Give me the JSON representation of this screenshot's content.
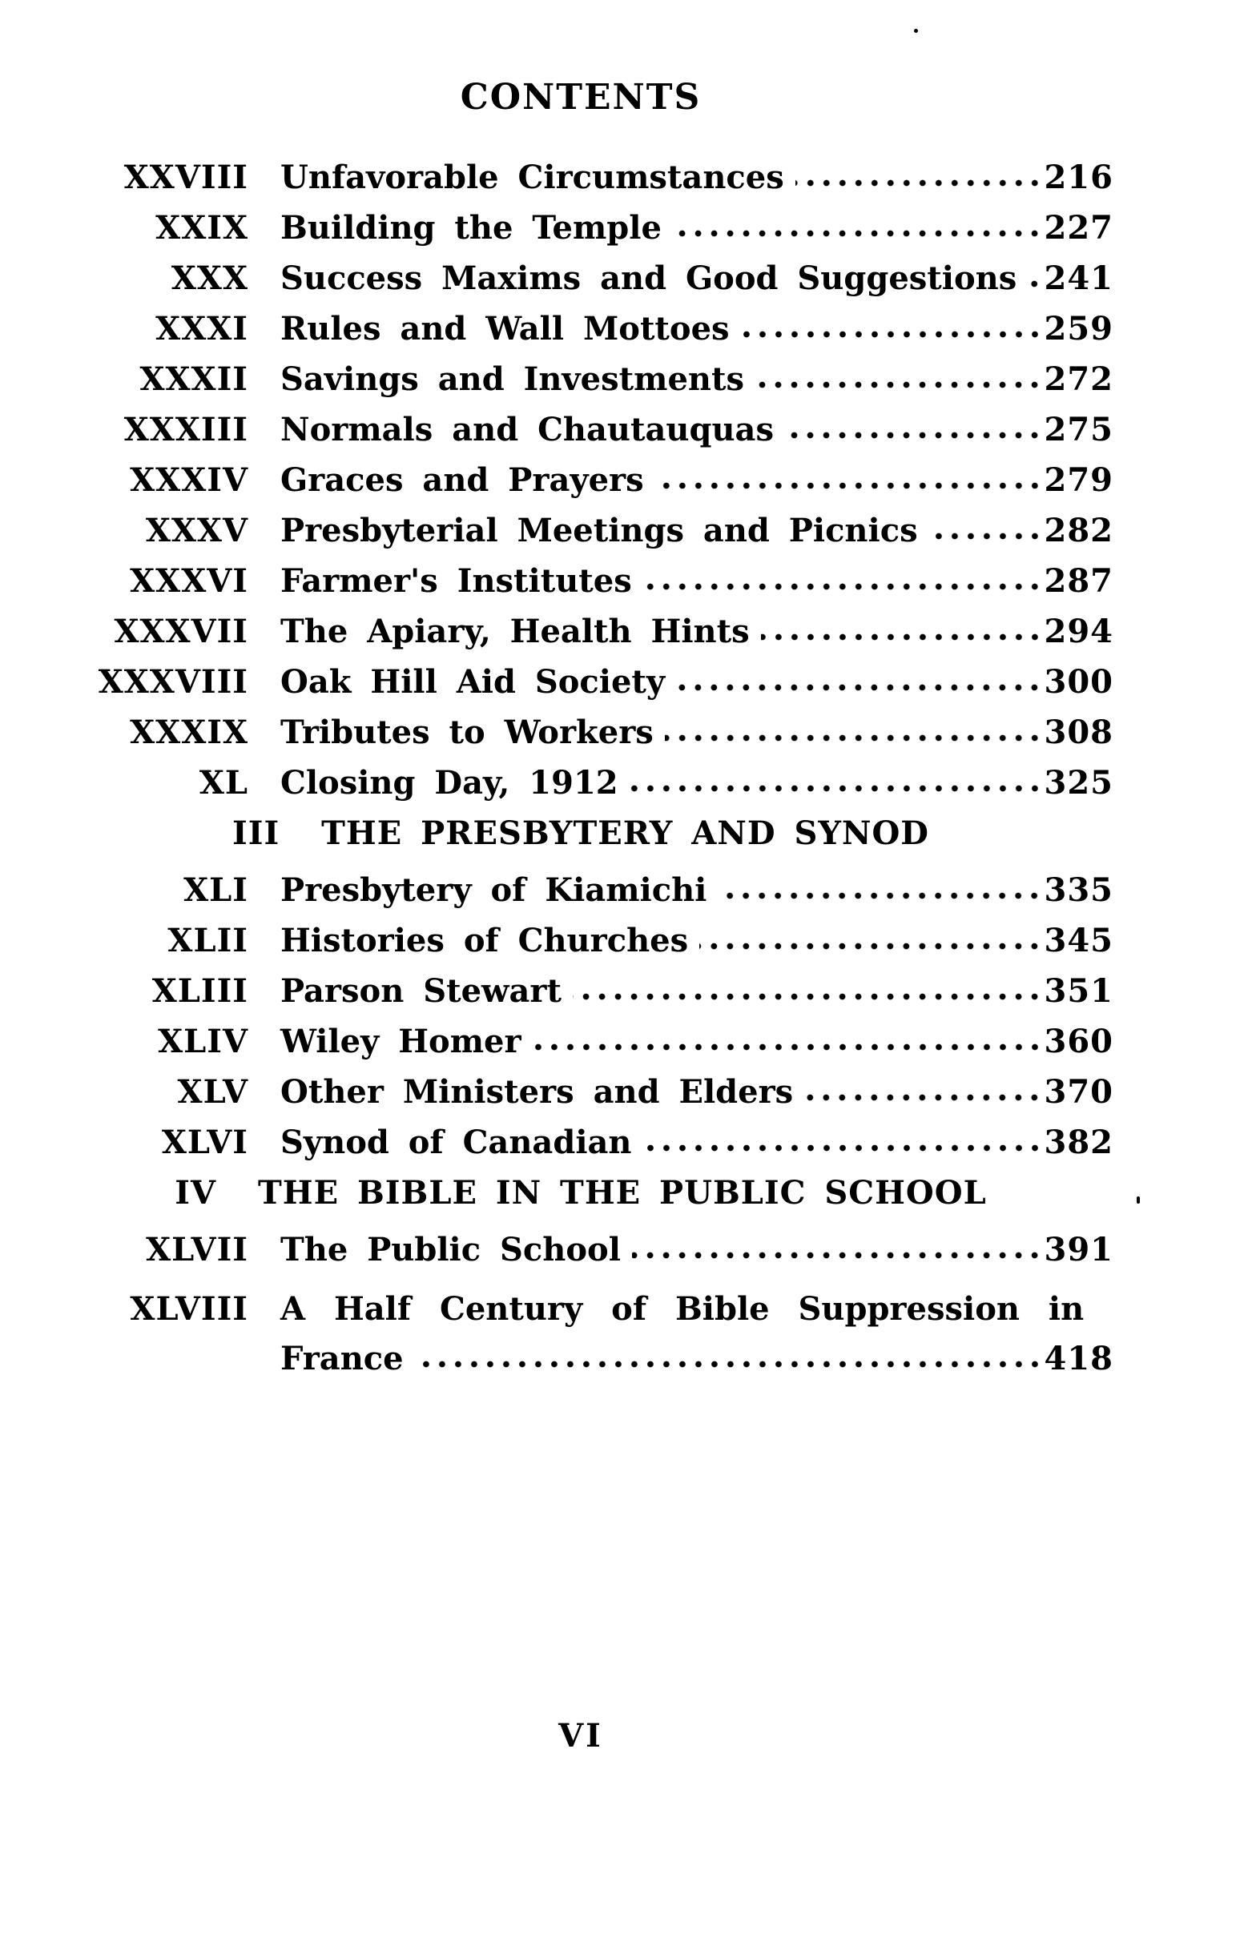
{
  "page": {
    "title": "CONTENTS",
    "page_number": "VI"
  },
  "sections": [
    {
      "heading": null,
      "entries": [
        {
          "num": "XXVIII",
          "title": "Unfavorable Circumstances",
          "page": "216"
        },
        {
          "num": "XXIX",
          "title": "Building the Temple",
          "page": "227"
        },
        {
          "num": "XXX",
          "title": "Success Maxims and Good Suggestions",
          "page": "241"
        },
        {
          "num": "XXXI",
          "title": "Rules and Wall Mottoes",
          "page": "259"
        },
        {
          "num": "XXXII",
          "title": "Savings and Investments",
          "page": "272"
        },
        {
          "num": "XXXIII",
          "title": "Normals and Chautauquas",
          "page": "275"
        },
        {
          "num": "XXXIV",
          "title": "Graces and Prayers",
          "page": "279"
        },
        {
          "num": "XXXV",
          "title": "Presbyterial Meetings and Picnics",
          "page": "282"
        },
        {
          "num": "XXXVI",
          "title": "Farmer's Institutes",
          "page": "287"
        },
        {
          "num": "XXXVII",
          "title": "The Apiary, Health Hints",
          "page": "294"
        },
        {
          "num": "XXXVIII",
          "title": "Oak Hill Aid Society",
          "page": "300"
        },
        {
          "num": "XXXIX",
          "title": "Tributes to Workers",
          "page": "308"
        },
        {
          "num": "XL",
          "title": "Closing Day, 1912",
          "page": "325"
        }
      ]
    },
    {
      "heading": {
        "num": "III",
        "title": "THE PRESBYTERY AND SYNOD"
      },
      "entries": [
        {
          "num": "XLI",
          "title": "Presbytery of Kiamichi",
          "page": "335"
        },
        {
          "num": "XLII",
          "title": "Histories of Churches",
          "page": "345"
        },
        {
          "num": "XLIII",
          "title": "Parson Stewart",
          "page": "351"
        },
        {
          "num": "XLIV",
          "title": "Wiley Homer",
          "page": "360"
        },
        {
          "num": "XLV",
          "title": "Other Ministers and Elders",
          "page": "370"
        },
        {
          "num": "XLVI",
          "title": "Synod of Canadian",
          "page": "382"
        }
      ]
    },
    {
      "heading": {
        "num": "IV",
        "title": "THE BIBLE IN THE PUBLIC SCHOOL"
      },
      "entries": [
        {
          "num": "XLVII",
          "title": "The Public School",
          "page": "391"
        },
        {
          "num": "XLVIII",
          "title": "A Half Century of Bible Suppression in",
          "title_cont": "France",
          "page": "418"
        }
      ]
    }
  ]
}
